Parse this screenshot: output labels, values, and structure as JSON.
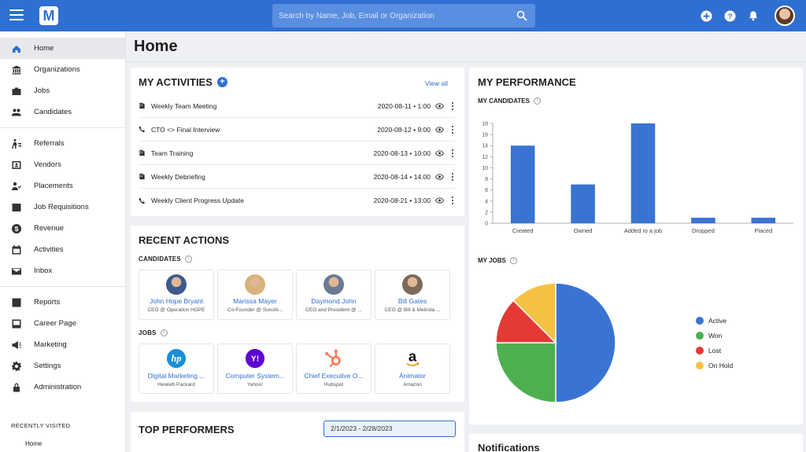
{
  "header": {
    "logo_letter": "M",
    "search_placeholder": "Search by Name, Job, Email or Organization"
  },
  "sidebar": {
    "groups": [
      [
        {
          "label": "Home",
          "icon": "home-icon",
          "active": true
        },
        {
          "label": "Organizations",
          "icon": "bank-icon"
        },
        {
          "label": "Jobs",
          "icon": "briefcase-icon"
        },
        {
          "label": "Candidates",
          "icon": "people-icon"
        }
      ],
      [
        {
          "label": "Referrals",
          "icon": "referral-icon"
        },
        {
          "label": "Vendors",
          "icon": "vendor-icon"
        },
        {
          "label": "Placements",
          "icon": "placement-icon"
        },
        {
          "label": "Job Requisitions",
          "icon": "requisition-icon"
        },
        {
          "label": "Revenue",
          "icon": "dollar-icon"
        },
        {
          "label": "Activities",
          "icon": "calendar-icon"
        },
        {
          "label": "Inbox",
          "icon": "mail-icon"
        }
      ],
      [
        {
          "label": "Reports",
          "icon": "reports-icon"
        },
        {
          "label": "Career Page",
          "icon": "career-page-icon"
        },
        {
          "label": "Marketing",
          "icon": "megaphone-icon"
        },
        {
          "label": "Settings",
          "icon": "gear-icon"
        },
        {
          "label": "Administration",
          "icon": "lock-icon"
        }
      ]
    ],
    "recent_title": "RECENTLY VISITED",
    "recent_items": [
      "Home"
    ]
  },
  "page": {
    "title": "Home"
  },
  "activities": {
    "title": "MY ACTIVITIES",
    "add_label": "+",
    "view_all": "View all",
    "items": [
      {
        "name": "Weekly Team Meeting",
        "date": "2020-08-11 • 1:00",
        "icon": "meeting-icon"
      },
      {
        "name": "CTO <> Final Interview",
        "date": "2020-08-12 • 9:00",
        "icon": "phone-icon"
      },
      {
        "name": "Team Training",
        "date": "2020-08-13 • 10:00",
        "icon": "meeting-icon"
      },
      {
        "name": "Weekly Debriefing",
        "date": "2020-08-14 • 14:00",
        "icon": "meeting-icon"
      },
      {
        "name": "Weekly Client Progress Update",
        "date": "2020-08-21 • 13:00",
        "icon": "phone-icon"
      }
    ]
  },
  "recent_actions": {
    "title": "RECENT ACTIONS",
    "candidates_label": "CANDIDATES",
    "candidates": [
      {
        "name": "John Hope Bryant",
        "sub": "CEO @ Operation HOPE",
        "color": "#3b5a8f"
      },
      {
        "name": "Marissa Mayer",
        "sub": "Co-Founder @ Sunshi...",
        "color": "#d9b27a"
      },
      {
        "name": "Daymond John",
        "sub": "CEO and President @ ...",
        "color": "#6b7a94"
      },
      {
        "name": "Bill Gates",
        "sub": "CEO @ Bill & Melinda ...",
        "color": "#7b6a5a"
      }
    ],
    "jobs_label": "JOBS",
    "jobs": [
      {
        "title": "Digital Marketing ...",
        "company": "Hewlett-Packard",
        "logo": "hp-logo",
        "logo_color": "#1a8fd6",
        "logo_text": "hp"
      },
      {
        "title": "Computer System...",
        "company": "Yahoo!",
        "logo": "yahoo-logo",
        "logo_color": "#6001d2",
        "logo_text": "Y!"
      },
      {
        "title": "Chief Executive O...",
        "company": "Hubspot",
        "logo": "hubspot-logo",
        "logo_color": "#ff7a59",
        "logo_text": ""
      },
      {
        "title": "Animator",
        "company": "Amazon",
        "logo": "amazon-logo",
        "logo_color": "#111111",
        "logo_text": "a"
      }
    ]
  },
  "top_performers": {
    "title": "TOP PERFORMERS",
    "date_range": "2/1/2023 - 2/28/2023"
  },
  "performance": {
    "title": "MY PERFORMANCE",
    "candidates_label": "MY CANDIDATES",
    "jobs_label": "MY JOBS"
  },
  "notifications": {
    "title": "Notifications"
  },
  "chart_data": [
    {
      "type": "bar",
      "categories": [
        "Created",
        "Owned",
        "Added to a job",
        "Dropped",
        "Placed"
      ],
      "values": [
        14,
        7,
        18,
        1,
        1
      ],
      "ylim": [
        0,
        18
      ],
      "yticks": [
        0,
        2,
        4,
        6,
        8,
        10,
        12,
        14,
        16,
        18
      ],
      "color": "#3a74d2",
      "grid": false
    },
    {
      "type": "pie",
      "labels": [
        "Active",
        "Won",
        "Lost",
        "On Hold"
      ],
      "values": [
        50,
        25,
        12.5,
        12.5
      ],
      "colors": [
        "#3a74d2",
        "#4caf50",
        "#e53935",
        "#f6c142"
      ],
      "legend": "right"
    }
  ]
}
